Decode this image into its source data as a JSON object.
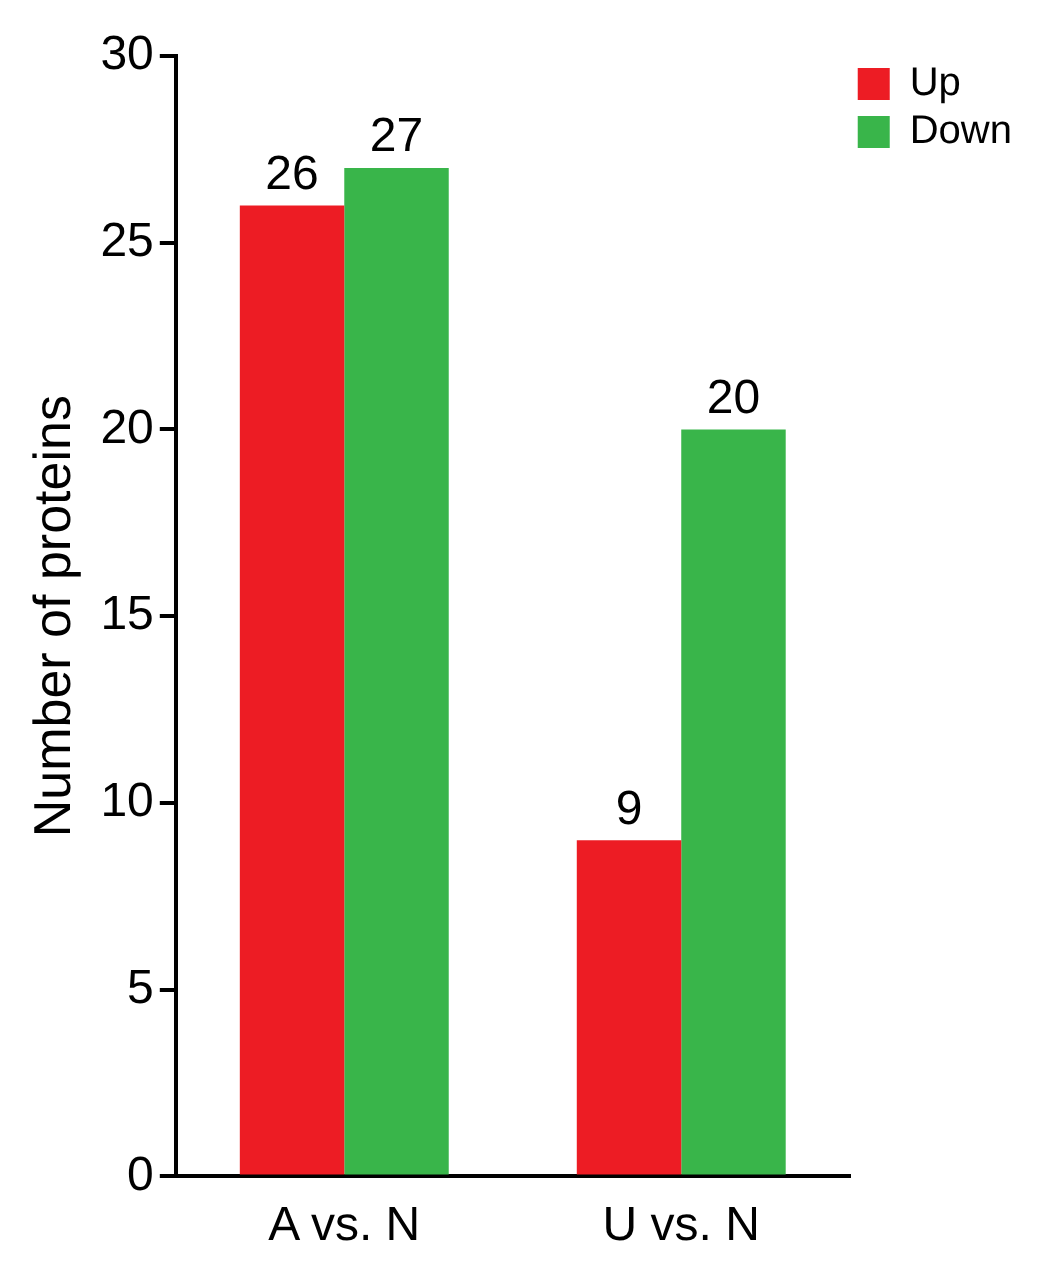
{
  "chart_data": {
    "type": "bar",
    "ylabel": "Number of proteins",
    "categories": [
      "A vs. N",
      "U vs. N"
    ],
    "series": [
      {
        "name": "Up",
        "color": "#ed1c24",
        "values": [
          26,
          9
        ]
      },
      {
        "name": "Down",
        "color": "#39b54a",
        "values": [
          27,
          20
        ]
      }
    ],
    "ylim": [
      0,
      30
    ],
    "yticks": [
      0,
      5,
      10,
      15,
      20,
      25,
      30
    ],
    "grid": false,
    "legend": "top right",
    "data_labels": true
  }
}
